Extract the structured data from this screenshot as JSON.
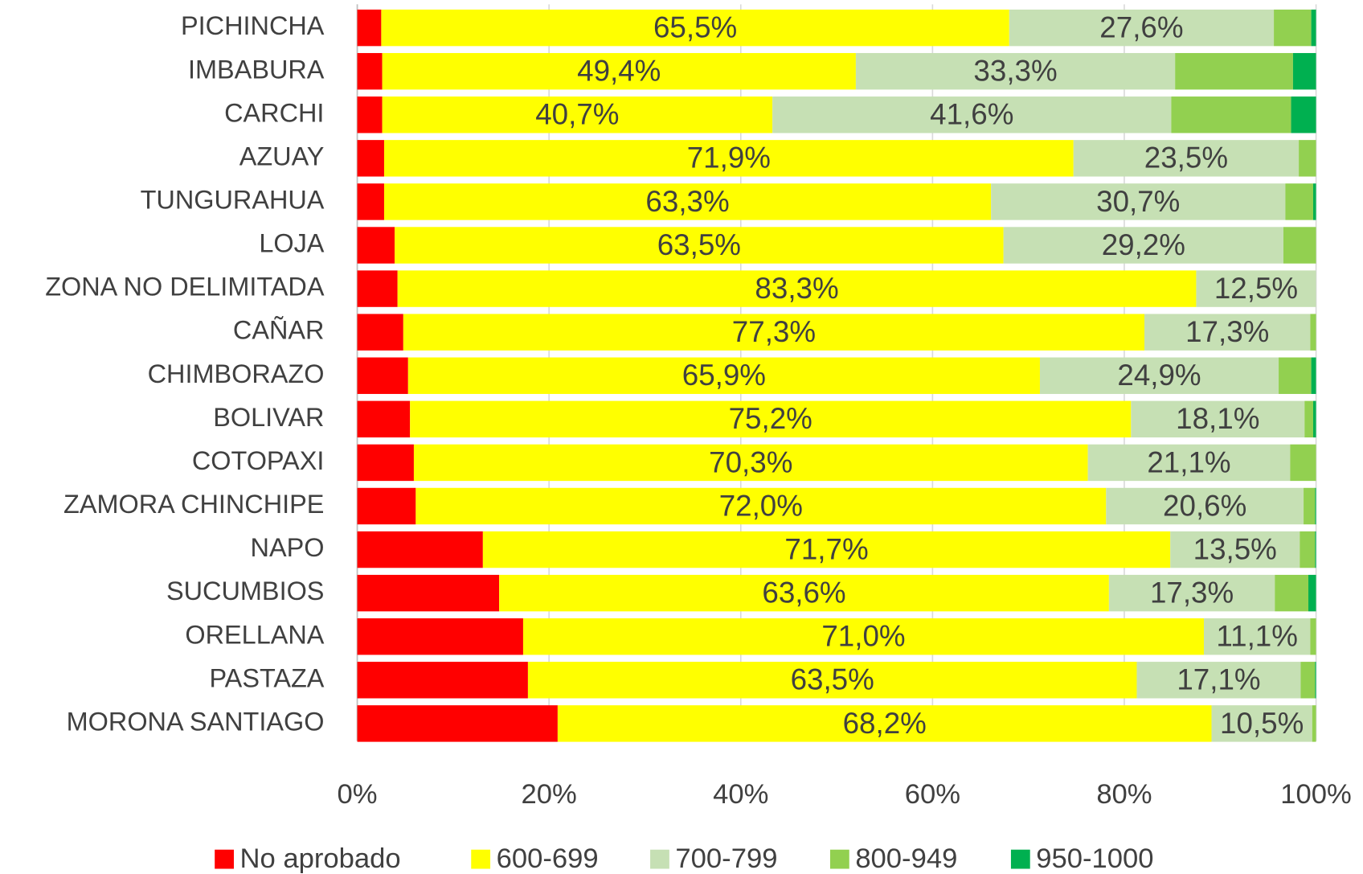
{
  "chart_data": {
    "type": "stacked_barh",
    "categories": [
      "PICHINCHA",
      "IMBABURA",
      "CARCHI",
      "AZUAY",
      "TUNGURAHUA",
      "LOJA",
      "ZONA NO DELIMITADA",
      "CAÑAR",
      "CHIMBORAZO",
      "BOLIVAR",
      "COTOPAXI",
      "ZAMORA CHINCHIPE",
      "NAPO",
      "SUCUMBIOS",
      "ORELLANA",
      "PASTAZA",
      "MORONA SANTIAGO"
    ],
    "series": [
      {
        "name": "No aprobado",
        "color": "#ff0000",
        "values": [
          2.5,
          2.6,
          2.6,
          2.8,
          2.8,
          3.9,
          4.2,
          4.8,
          5.3,
          5.5,
          5.9,
          6.1,
          13.1,
          14.8,
          17.3,
          17.8,
          20.9
        ]
      },
      {
        "name": "600-699",
        "color": "#ffff00",
        "values": [
          65.5,
          49.4,
          40.7,
          71.9,
          63.3,
          63.5,
          83.3,
          77.3,
          65.9,
          75.2,
          70.3,
          72.0,
          71.7,
          63.6,
          71.0,
          63.5,
          68.2
        ],
        "value_labels": [
          "65,5%",
          "49,4%",
          "40,7%",
          "71,9%",
          "63,3%",
          "63,5%",
          "83,3%",
          "77,3%",
          "65,9%",
          "75,2%",
          "70,3%",
          "72,0%",
          "71,7%",
          "63,6%",
          "71,0%",
          "63,5%",
          "68,2%"
        ]
      },
      {
        "name": "700-799",
        "color": "#c6e0b4",
        "values": [
          27.6,
          33.3,
          41.6,
          23.5,
          30.7,
          29.2,
          12.5,
          17.3,
          24.9,
          18.1,
          21.1,
          20.6,
          13.5,
          17.3,
          11.1,
          17.1,
          10.5
        ],
        "value_labels": [
          "27,6%",
          "33,3%",
          "41,6%",
          "23,5%",
          "30,7%",
          "29,2%",
          "12,5%",
          "17,3%",
          "24,9%",
          "18,1%",
          "21,1%",
          "20,6%",
          "13,5%",
          "17,3%",
          "11,1%",
          "17,1%",
          "10,5%"
        ]
      },
      {
        "name": "800-949",
        "color": "#92d050",
        "values": [
          3.9,
          12.3,
          12.5,
          1.8,
          2.9,
          3.4,
          0,
          0.6,
          3.4,
          0.9,
          2.7,
          1.2,
          1.6,
          3.5,
          0.6,
          1.5,
          0.4
        ]
      },
      {
        "name": "950-1000",
        "color": "#00b050",
        "values": [
          0.5,
          2.4,
          2.6,
          0,
          0.3,
          0,
          0,
          0,
          0.5,
          0.3,
          0,
          0.1,
          0.1,
          0.8,
          0,
          0.1,
          0
        ]
      }
    ],
    "xlim": [
      0,
      100
    ],
    "xticks": [
      {
        "value": 0,
        "label": "0%"
      },
      {
        "value": 20,
        "label": "20%"
      },
      {
        "value": 40,
        "label": "40%"
      },
      {
        "value": 60,
        "label": "60%"
      },
      {
        "value": 80,
        "label": "80%"
      },
      {
        "value": 100,
        "label": "100%"
      }
    ],
    "grid": true,
    "legend": "bottom"
  }
}
